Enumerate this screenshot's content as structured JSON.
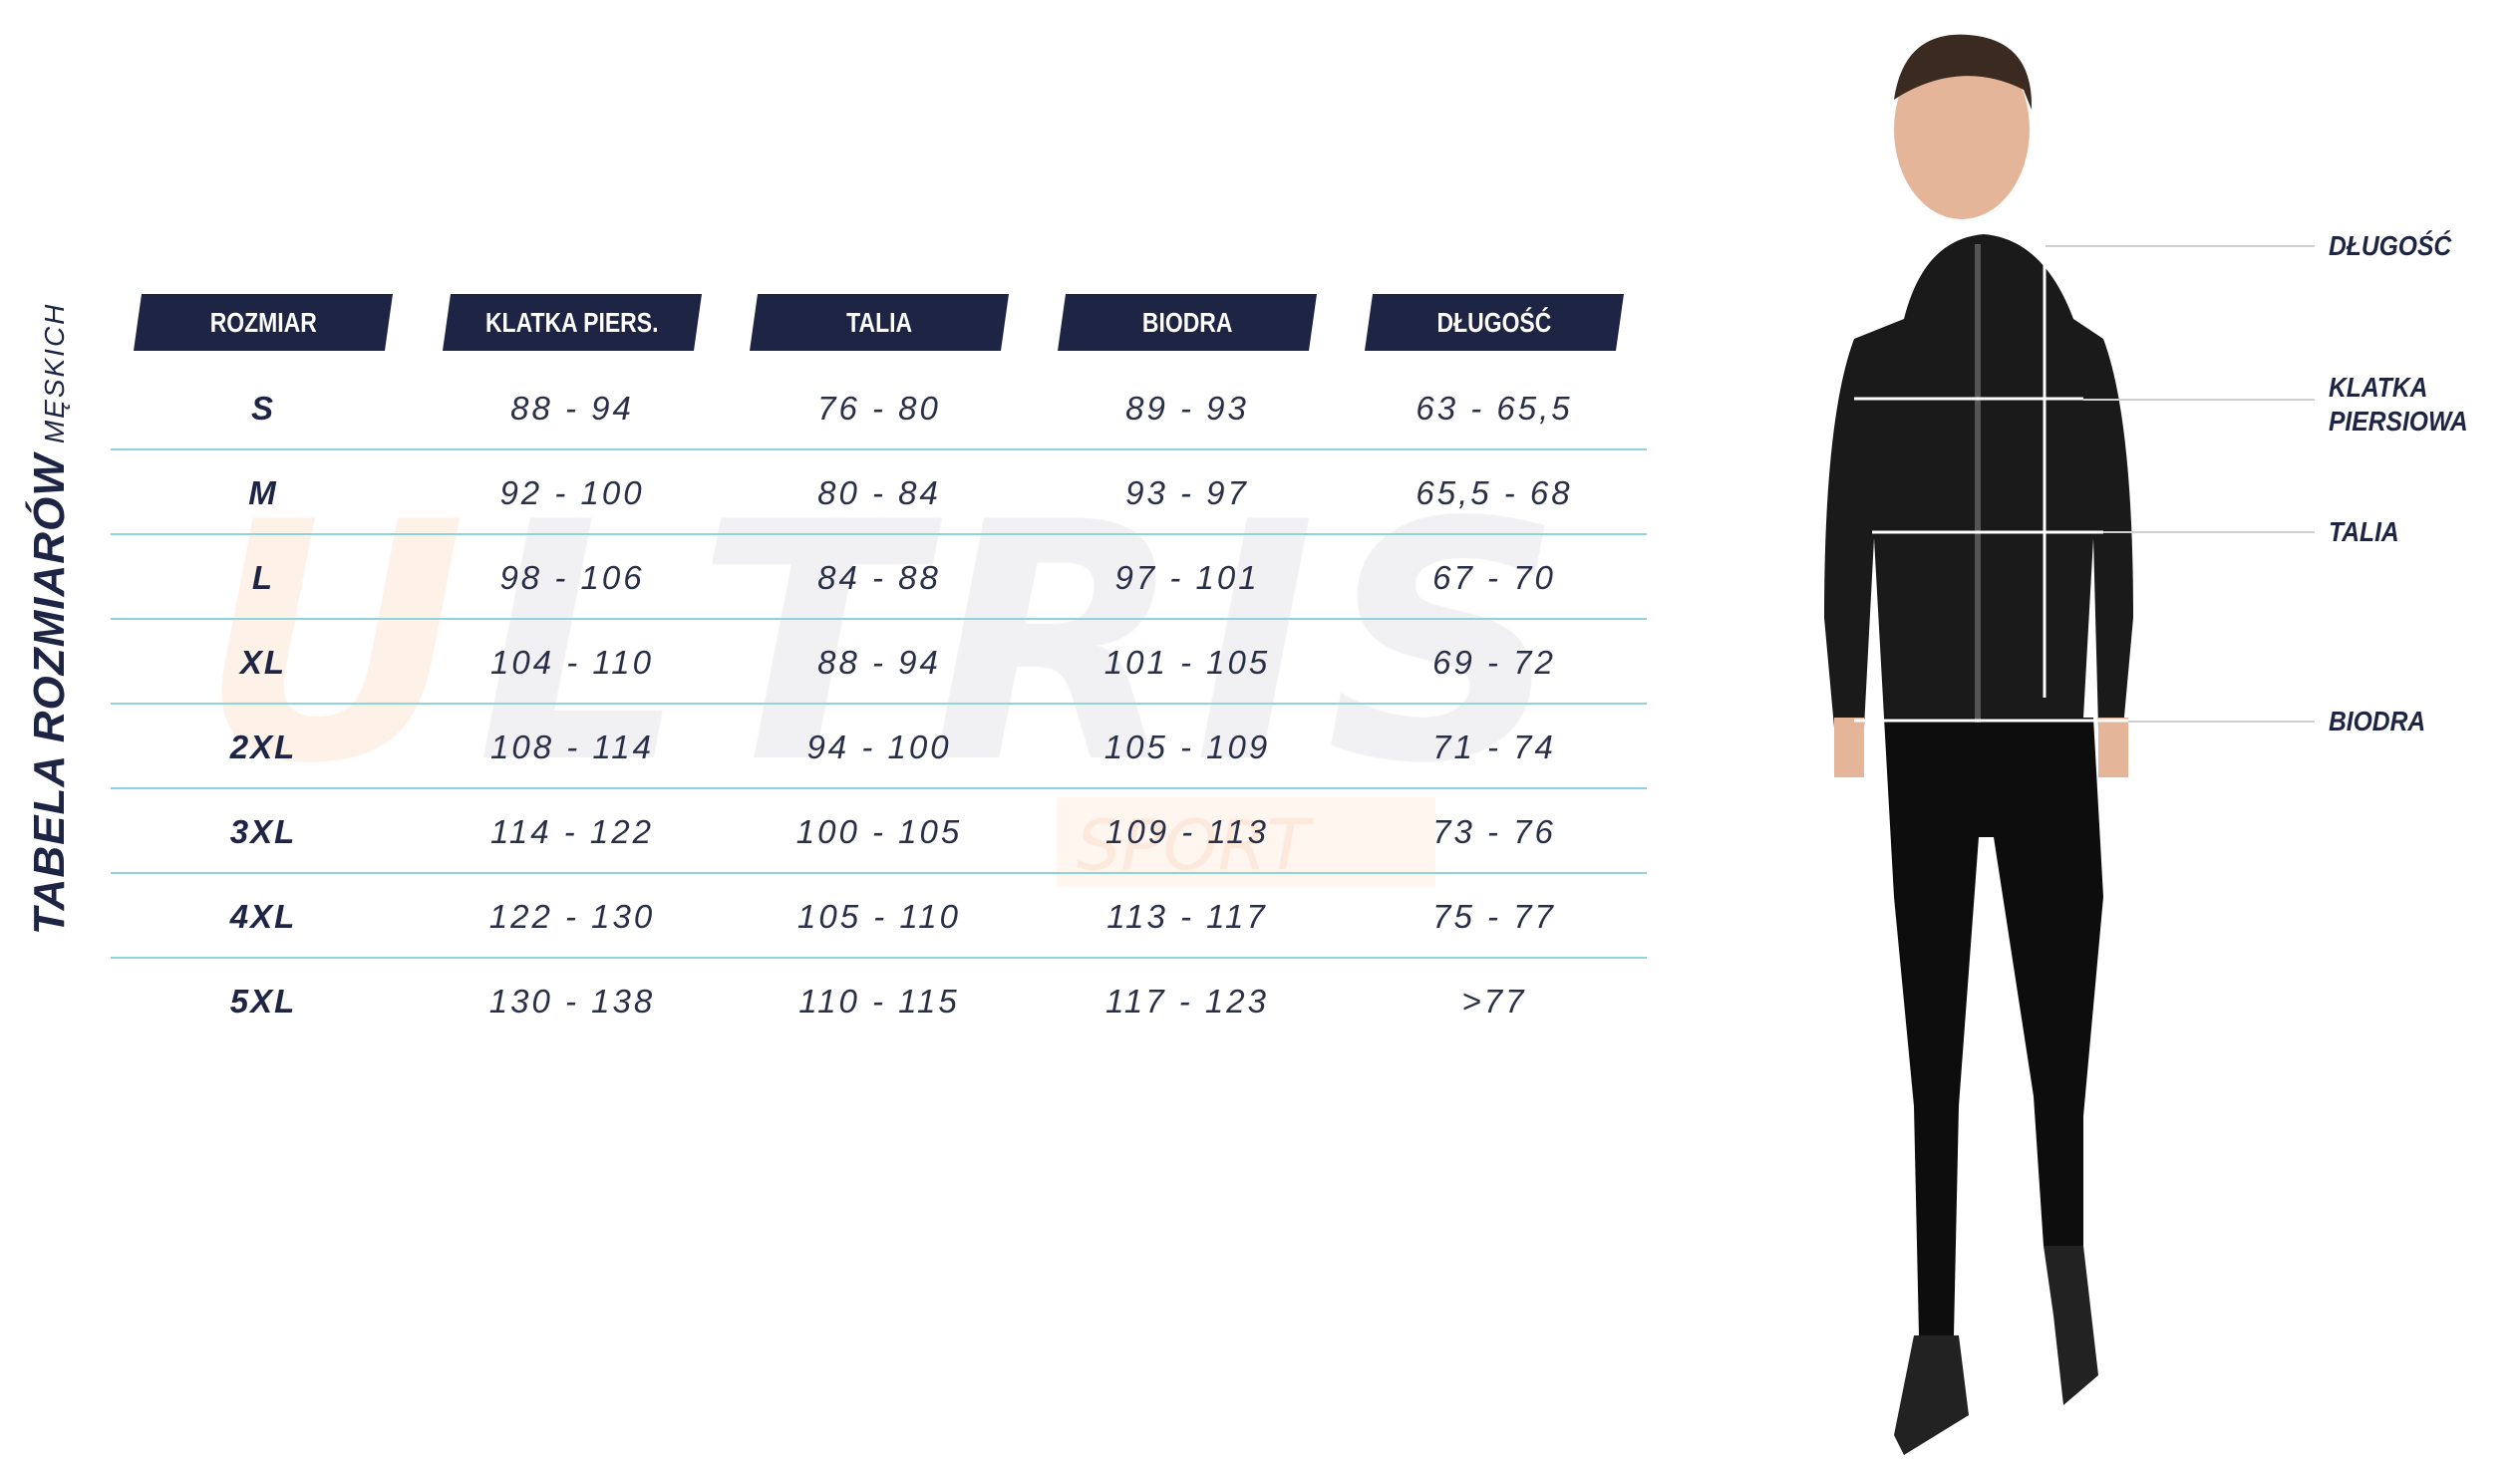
{
  "title": {
    "main": "TABELA ROZMIARÓW",
    "sub": "MĘSKICH"
  },
  "watermark": {
    "brand": "ULTRIS",
    "sub": "SPORT"
  },
  "table": {
    "headers": [
      "ROZMIAR",
      "KLATKA PIERS.",
      "TALIA",
      "BIODRA",
      "DŁUGOŚĆ"
    ],
    "rows": [
      [
        "S",
        "88 - 94",
        "76 - 80",
        "89 - 93",
        "63 - 65,5"
      ],
      [
        "M",
        "92 - 100",
        "80 - 84",
        "93 - 97",
        "65,5 - 68"
      ],
      [
        "L",
        "98 - 106",
        "84 - 88",
        "97 - 101",
        "67 - 70"
      ],
      [
        "XL",
        "104 - 110",
        "88 - 94",
        "101 - 105",
        "69 - 72"
      ],
      [
        "2XL",
        "108 - 114",
        "94 - 100",
        "105 - 109",
        "71 - 74"
      ],
      [
        "3XL",
        "114 - 122",
        "100 - 105",
        "109 - 113",
        "73 - 76"
      ],
      [
        "4XL",
        "122 - 130",
        "105 - 110",
        "113 - 117",
        "75 - 77"
      ],
      [
        "5XL",
        "130 - 138",
        "110 - 115",
        "117 - 123",
        ">77"
      ]
    ]
  },
  "figure_labels": {
    "length": "DŁUGOŚĆ",
    "chest_1": "KLATKA",
    "chest_2": "PIERSIOWA",
    "waist": "TALIA",
    "hips": "BIODRA"
  },
  "colors": {
    "header_bg": "#1d2444",
    "row_line": "#8fd3dc",
    "text": "#1d2444"
  }
}
